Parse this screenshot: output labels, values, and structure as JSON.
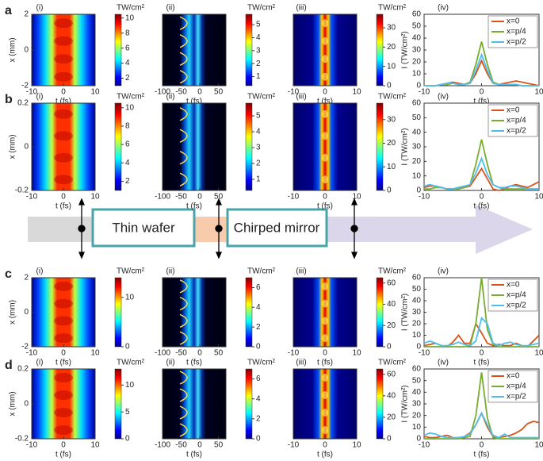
{
  "row_labels": [
    "a",
    "b",
    "c",
    "d"
  ],
  "stages": [
    "Thin wafer",
    "Chirped mirror"
  ],
  "chart_data": [
    {
      "type": "heatmap",
      "label": "(i)",
      "unit": "TW/cm²",
      "xlabel": "t (fs)",
      "ylabel": "x (mm)",
      "xlim": [
        -10,
        10
      ],
      "xticks": [
        -10,
        0,
        10
      ],
      "ylim": [
        -2,
        2
      ],
      "yticks": [
        -2,
        0,
        2
      ],
      "clim": [
        1,
        10.5
      ],
      "cticks": [
        2,
        4,
        6,
        8,
        10
      ],
      "colormap": "jet"
    },
    {
      "type": "heatmap",
      "label": "(ii)",
      "unit": "TW/cm²",
      "xlabel": "t (fs)",
      "xlim": [
        -100,
        70
      ],
      "xticks": [
        -100,
        -50,
        0,
        50
      ],
      "clim": [
        0.3,
        5.8
      ],
      "cticks": [
        1,
        2,
        3,
        4,
        5
      ],
      "colormap": "jet"
    },
    {
      "type": "heatmap",
      "label": "(iii)",
      "unit": "TW/cm²",
      "xlabel": "t (fs)",
      "xlim": [
        -10,
        10
      ],
      "xticks": [
        -10,
        0,
        10
      ],
      "clim": [
        0,
        37
      ],
      "cticks": [
        0,
        10,
        20,
        30
      ],
      "colormap": "jet"
    },
    {
      "type": "line",
      "label": "(iv)",
      "ylabel": "I (TW/cm²)",
      "xlabel": "t (fs)",
      "xlim": [
        -10,
        10
      ],
      "xticks": [
        -10,
        0,
        10
      ],
      "ylim": [
        0,
        60
      ],
      "yticks": [
        0,
        10,
        20,
        30,
        40,
        50,
        60
      ],
      "legend": "upper right",
      "x": [
        -10,
        -9,
        -8,
        -7,
        -6,
        -5,
        -4,
        -3,
        -2,
        -1,
        0,
        1,
        2,
        3,
        4,
        5,
        6,
        7,
        8,
        9,
        10
      ],
      "series": [
        {
          "name": "x=0",
          "color": "#d95319",
          "values": [
            0,
            0,
            0,
            1,
            2,
            3,
            2,
            1,
            2,
            10,
            21,
            10,
            2,
            1,
            2,
            3,
            4,
            3,
            2,
            1,
            0
          ]
        },
        {
          "name": "x=p/4",
          "color": "#77ac30",
          "values": [
            0,
            0,
            0,
            1,
            1,
            2,
            1,
            1,
            3,
            18,
            37,
            18,
            3,
            1,
            1,
            1,
            1,
            0,
            0,
            0,
            0
          ]
        },
        {
          "name": "x=p/2",
          "color": "#4dbeee",
          "values": [
            0,
            0,
            0,
            1,
            2,
            2,
            1,
            1,
            2,
            13,
            26,
            13,
            2,
            1,
            1,
            1,
            1,
            0,
            0,
            0,
            0
          ]
        }
      ]
    },
    {
      "type": "heatmap",
      "label": "(i)",
      "unit": "TW/cm²",
      "xlabel": "t (fs)",
      "ylabel": "x (mm)",
      "xlim": [
        -10,
        10
      ],
      "xticks": [
        -10,
        0,
        10
      ],
      "ylim": [
        -0.2,
        0.2
      ],
      "yticks": [
        -0.2,
        0,
        0.2
      ],
      "clim": [
        1,
        10.5
      ],
      "cticks": [
        2,
        4,
        6,
        8,
        10
      ],
      "colormap": "jet"
    },
    {
      "type": "heatmap",
      "label": "(ii)",
      "unit": "TW/cm²",
      "xlabel": "t (fs)",
      "xlim": [
        -100,
        70
      ],
      "xticks": [
        -100,
        -50,
        0,
        50
      ],
      "clim": [
        0.3,
        5.8
      ],
      "cticks": [
        1,
        2,
        3,
        4,
        5
      ],
      "colormap": "jet"
    },
    {
      "type": "heatmap",
      "label": "(iii)",
      "unit": "TW/cm²",
      "xlabel": "t (fs)",
      "xlim": [
        -10,
        10
      ],
      "xticks": [
        -10,
        0,
        10
      ],
      "clim": [
        0,
        37
      ],
      "cticks": [
        0,
        10,
        20,
        30
      ],
      "colormap": "jet"
    },
    {
      "type": "line",
      "label": "(iv)",
      "ylabel": "I (TW/cm²)",
      "xlabel": "t (fs)",
      "xlim": [
        -10,
        10
      ],
      "xticks": [
        -10,
        0,
        10
      ],
      "ylim": [
        0,
        60
      ],
      "yticks": [
        0,
        10,
        20,
        30,
        40,
        50,
        60
      ],
      "legend": "upper right",
      "x": [
        -10,
        -9,
        -8,
        -7,
        -6,
        -5,
        -4,
        -3,
        -2,
        -1,
        0,
        1,
        2,
        3,
        4,
        5,
        6,
        7,
        8,
        9,
        10
      ],
      "series": [
        {
          "name": "x=0",
          "color": "#d95319",
          "values": [
            2,
            3,
            3,
            2,
            1,
            1,
            2,
            2,
            3,
            9,
            15,
            8,
            1,
            0,
            1,
            3,
            4,
            3,
            2,
            4,
            6
          ]
        },
        {
          "name": "x=p/4",
          "color": "#77ac30",
          "values": [
            1,
            1,
            2,
            2,
            1,
            1,
            1,
            2,
            4,
            18,
            35,
            18,
            4,
            2,
            1,
            1,
            1,
            1,
            1,
            1,
            1
          ]
        },
        {
          "name": "x=p/2",
          "color": "#4dbeee",
          "values": [
            3,
            4,
            3,
            2,
            1,
            1,
            2,
            3,
            4,
            12,
            22,
            11,
            4,
            2,
            2,
            3,
            3,
            2,
            1,
            1,
            1
          ]
        }
      ]
    },
    {
      "type": "heatmap",
      "label": "(i)",
      "unit": "TW/cm²",
      "xlabel": "t (fs)",
      "ylabel": "x (mm)",
      "xlim": [
        -10,
        10
      ],
      "xticks": [
        -10,
        0,
        10
      ],
      "ylim": [
        -2,
        2
      ],
      "yticks": [
        -2,
        0,
        2
      ],
      "clim": [
        0,
        14
      ],
      "cticks": [
        0,
        10
      ],
      "colormap": "jet"
    },
    {
      "type": "heatmap",
      "label": "(ii)",
      "unit": "TW/cm²",
      "xlabel": "t (fs)",
      "xlim": [
        -100,
        70
      ],
      "xticks": [
        -100,
        -50,
        0,
        50
      ],
      "clim": [
        0,
        7
      ],
      "cticks": [
        0,
        2,
        4,
        6
      ],
      "colormap": "jet"
    },
    {
      "type": "heatmap",
      "label": "(iii)",
      "unit": "TW/cm²",
      "xlabel": "t (fs)",
      "xlim": [
        -10,
        10
      ],
      "xticks": [
        -10,
        0,
        10
      ],
      "clim": [
        0,
        65
      ],
      "cticks": [
        0,
        20,
        40,
        60
      ],
      "colormap": "jet"
    },
    {
      "type": "line",
      "label": "(iv)",
      "ylabel": "I (TW/cm²)",
      "xlabel": "t (fs)",
      "xlim": [
        -10,
        10
      ],
      "xticks": [
        -10,
        0,
        10
      ],
      "ylim": [
        0,
        60
      ],
      "yticks": [
        0,
        10,
        20,
        30,
        40,
        50,
        60
      ],
      "legend": "upper right",
      "x": [
        -10,
        -9,
        -8,
        -7,
        -6,
        -5,
        -4,
        -3,
        -2,
        -1,
        0,
        1,
        2,
        3,
        4,
        5,
        6,
        7,
        8,
        9,
        10
      ],
      "series": [
        {
          "name": "x=0",
          "color": "#d95319",
          "values": [
            1,
            2,
            3,
            1,
            0,
            4,
            10,
            3,
            3,
            20,
            12,
            3,
            1,
            2,
            1,
            1,
            3,
            1,
            0,
            5,
            10
          ]
        },
        {
          "name": "x=p/4",
          "color": "#77ac30",
          "values": [
            0,
            0,
            0,
            0,
            0,
            0,
            0,
            0,
            1,
            20,
            60,
            15,
            2,
            0,
            0,
            0,
            0,
            0,
            0,
            0,
            0
          ]
        },
        {
          "name": "x=p/2",
          "color": "#4dbeee",
          "values": [
            3,
            5,
            3,
            1,
            1,
            2,
            4,
            2,
            1,
            5,
            25,
            20,
            3,
            1,
            3,
            4,
            2,
            1,
            1,
            2,
            3
          ]
        }
      ]
    },
    {
      "type": "heatmap",
      "label": "(i)",
      "unit": "TW/cm²",
      "xlabel": "t (fs)",
      "ylabel": "x (mm)",
      "xlim": [
        -10,
        10
      ],
      "xticks": [
        -10,
        0,
        10
      ],
      "ylim": [
        -0.2,
        0.2
      ],
      "yticks": [
        -0.2,
        0,
        0.2
      ],
      "clim": [
        0,
        13
      ],
      "cticks": [
        0,
        5,
        10
      ],
      "colormap": "jet"
    },
    {
      "type": "heatmap",
      "label": "(ii)",
      "unit": "TW/cm²",
      "xlabel": "t (fs)",
      "xlim": [
        -100,
        70
      ],
      "xticks": [
        -100,
        -50,
        0,
        50
      ],
      "clim": [
        0,
        7
      ],
      "cticks": [
        0,
        2,
        4,
        6
      ],
      "colormap": "jet"
    },
    {
      "type": "heatmap",
      "label": "(iii)",
      "unit": "TW/cm²",
      "xlabel": "t (fs)",
      "xlim": [
        -10,
        10
      ],
      "xticks": [
        -10,
        0,
        10
      ],
      "clim": [
        0,
        65
      ],
      "cticks": [
        0,
        20,
        40,
        60
      ],
      "colormap": "jet"
    },
    {
      "type": "line",
      "label": "(iv)",
      "ylabel": "I (TW/cm²)",
      "xlabel": "t (fs)",
      "xlim": [
        -10,
        10
      ],
      "xticks": [
        -10,
        0,
        10
      ],
      "ylim": [
        0,
        60
      ],
      "yticks": [
        0,
        10,
        20,
        30,
        40,
        50,
        60
      ],
      "legend": "upper right",
      "x": [
        -10,
        -9,
        -8,
        -7,
        -6,
        -5,
        -4,
        -3,
        -2,
        -1,
        0,
        1,
        2,
        3,
        4,
        5,
        6,
        7,
        8,
        9,
        10
      ],
      "series": [
        {
          "name": "x=0",
          "color": "#d95319",
          "values": [
            2,
            1,
            1,
            2,
            3,
            1,
            0,
            2,
            5,
            12,
            22,
            10,
            2,
            1,
            2,
            3,
            5,
            8,
            13,
            15,
            14
          ]
        },
        {
          "name": "x=p/4",
          "color": "#77ac30",
          "values": [
            0,
            0,
            0,
            0,
            0,
            0,
            0,
            1,
            2,
            20,
            57,
            18,
            1,
            0,
            0,
            0,
            0,
            0,
            0,
            0,
            0
          ]
        },
        {
          "name": "x=p/2",
          "color": "#4dbeee",
          "values": [
            3,
            5,
            4,
            2,
            1,
            1,
            1,
            2,
            4,
            12,
            22,
            12,
            3,
            1,
            4,
            1,
            1,
            1,
            1,
            1,
            1
          ]
        }
      ]
    }
  ]
}
